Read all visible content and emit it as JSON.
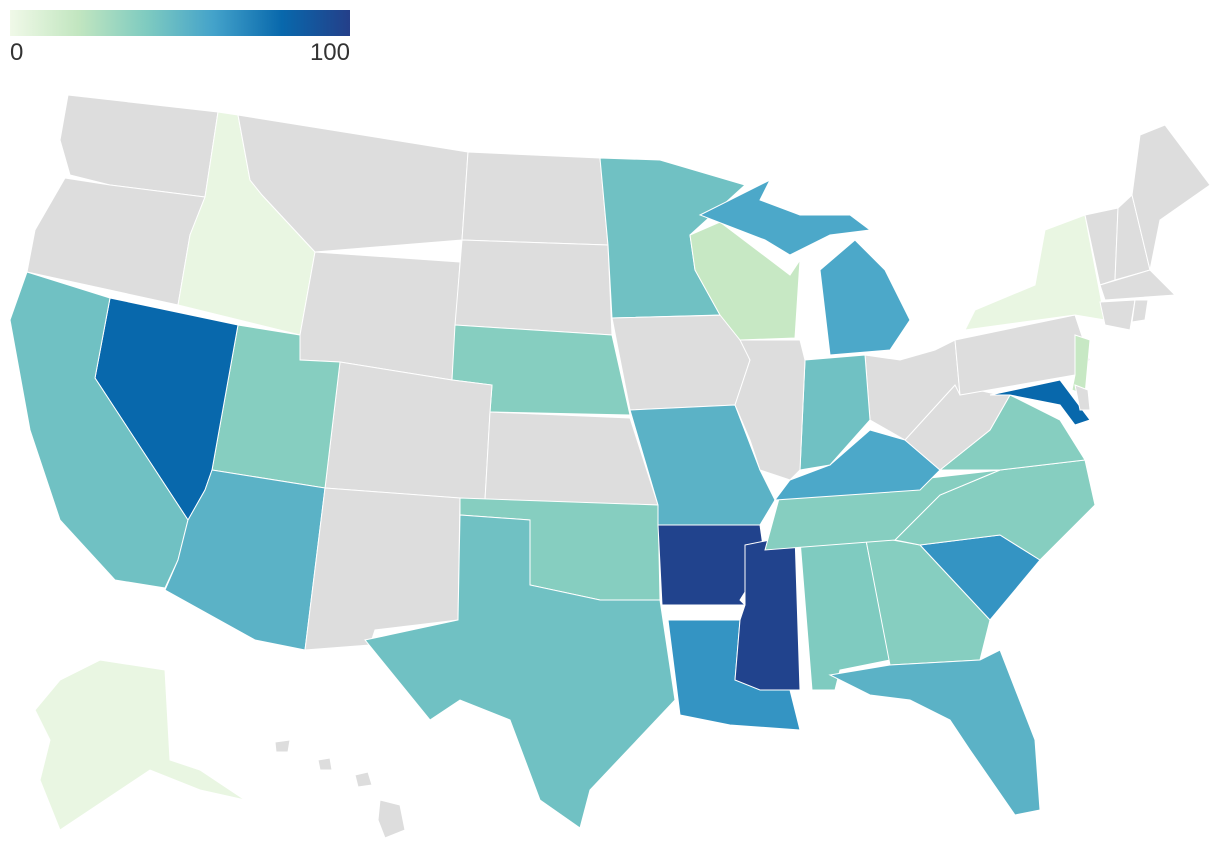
{
  "chart_data": {
    "type": "choropleth",
    "colorscale": [
      "#f0f9e8",
      "#c2e6c0",
      "#7fcbc0",
      "#43a2ca",
      "#0868ac",
      "#243f89"
    ],
    "missing_color": "#dddddd",
    "border_color": "#ffffff",
    "zlim": [
      0,
      100
    ],
    "zticks": [
      0,
      100
    ],
    "values": [
      null,
      null,
      3,
      null,
      null,
      null,
      null,
      38,
      null,
      38,
      80,
      45,
      52,
      null,
      null,
      38,
      45,
      45,
      null,
      52,
      98,
      65,
      98,
      40,
      38,
      52,
      65,
      38,
      38,
      38,
      57,
      null,
      null,
      45,
      null,
      18,
      57,
      null,
      3,
      18,
      80,
      null,
      null,
      null,
      null,
      null,
      null,
      null,
      3,
      null
    ]
  }
}
